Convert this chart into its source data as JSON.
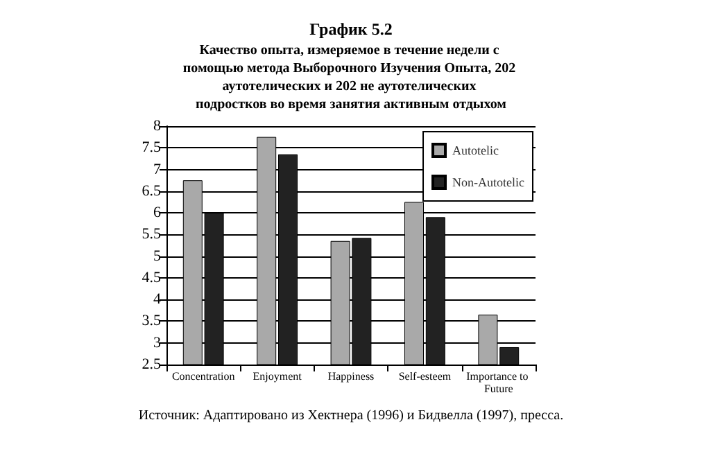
{
  "chart_data": {
    "type": "bar",
    "title": "График 5.2",
    "subtitle": "Качество опыта, измеряемое в течение недели с помощью метода Выборочного Изучения Опыта, 202 аутотелических и 202 не аутотелических подростков во время занятия активным отдыхом",
    "categories": [
      "Concentration",
      "Enjoyment",
      "Happiness",
      "Self-esteem",
      "Importance to Future"
    ],
    "series": [
      {
        "name": "Autotelic",
        "color": "#a9a9a9",
        "values": [
          6.75,
          7.75,
          5.35,
          6.25,
          3.65
        ]
      },
      {
        "name": "Non-Autotelic",
        "color": "#222222",
        "values": [
          6.0,
          7.35,
          5.42,
          5.9,
          2.9
        ]
      }
    ],
    "ylim": [
      2.5,
      8
    ],
    "yticks": [
      2.5,
      3,
      3.5,
      4,
      4.5,
      5,
      5.5,
      6,
      6.5,
      7,
      7.5,
      8
    ],
    "grid": "y",
    "legend": "top right",
    "annotations": [
      "Источник: Адаптировано из Хектнера (1996) и Бидвелла (1997), пресса."
    ]
  }
}
